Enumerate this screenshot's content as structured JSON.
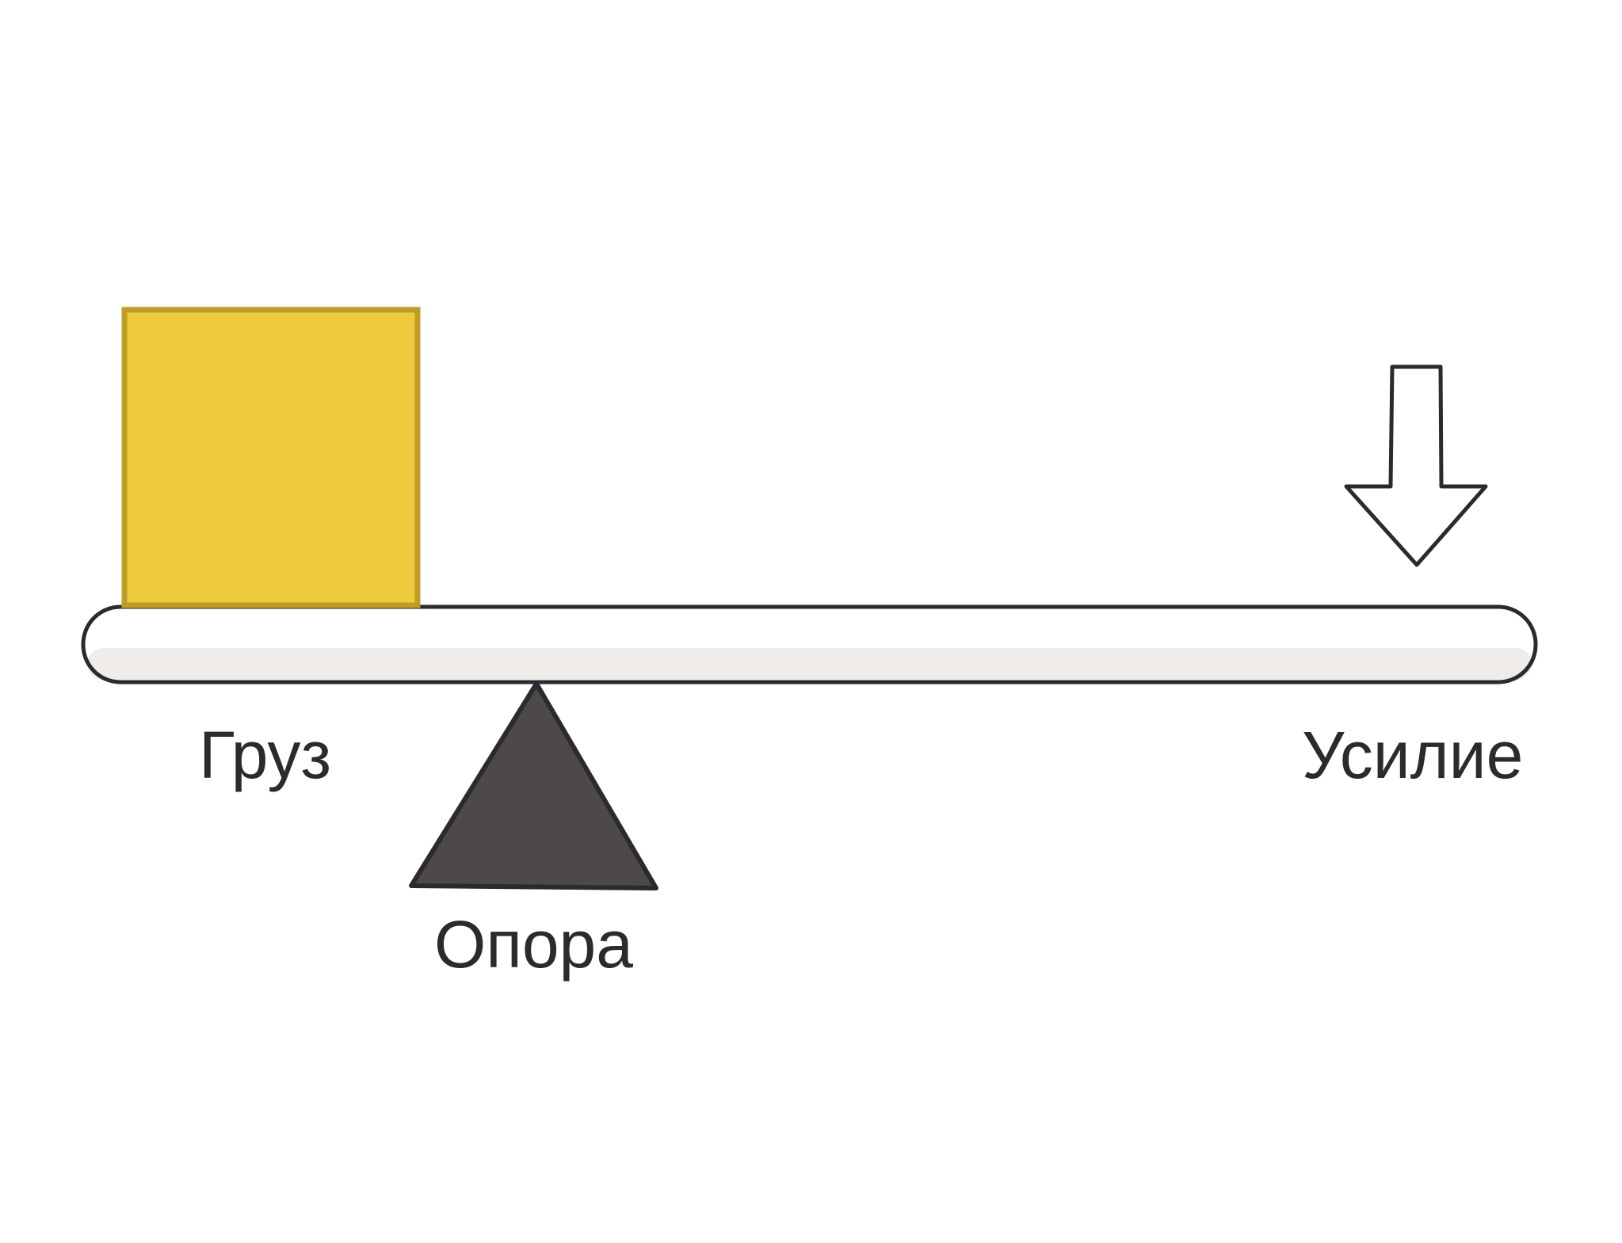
{
  "labels": {
    "load": "Груз",
    "fulcrum": "Опора",
    "effort": "Усилие"
  },
  "colors": {
    "load_fill": "#eecb3d",
    "load_border": "#bf9c26",
    "beam_fill": "#ffffff",
    "beam_shade": "#f0ecea",
    "outline": "#2b2a2c",
    "fulcrum_fill": "#4c484c",
    "arrow_fill": "#ffffff"
  },
  "icons": {
    "load": "square-weight-icon",
    "fulcrum": "triangle-fulcrum-icon",
    "effort": "down-arrow-icon"
  }
}
